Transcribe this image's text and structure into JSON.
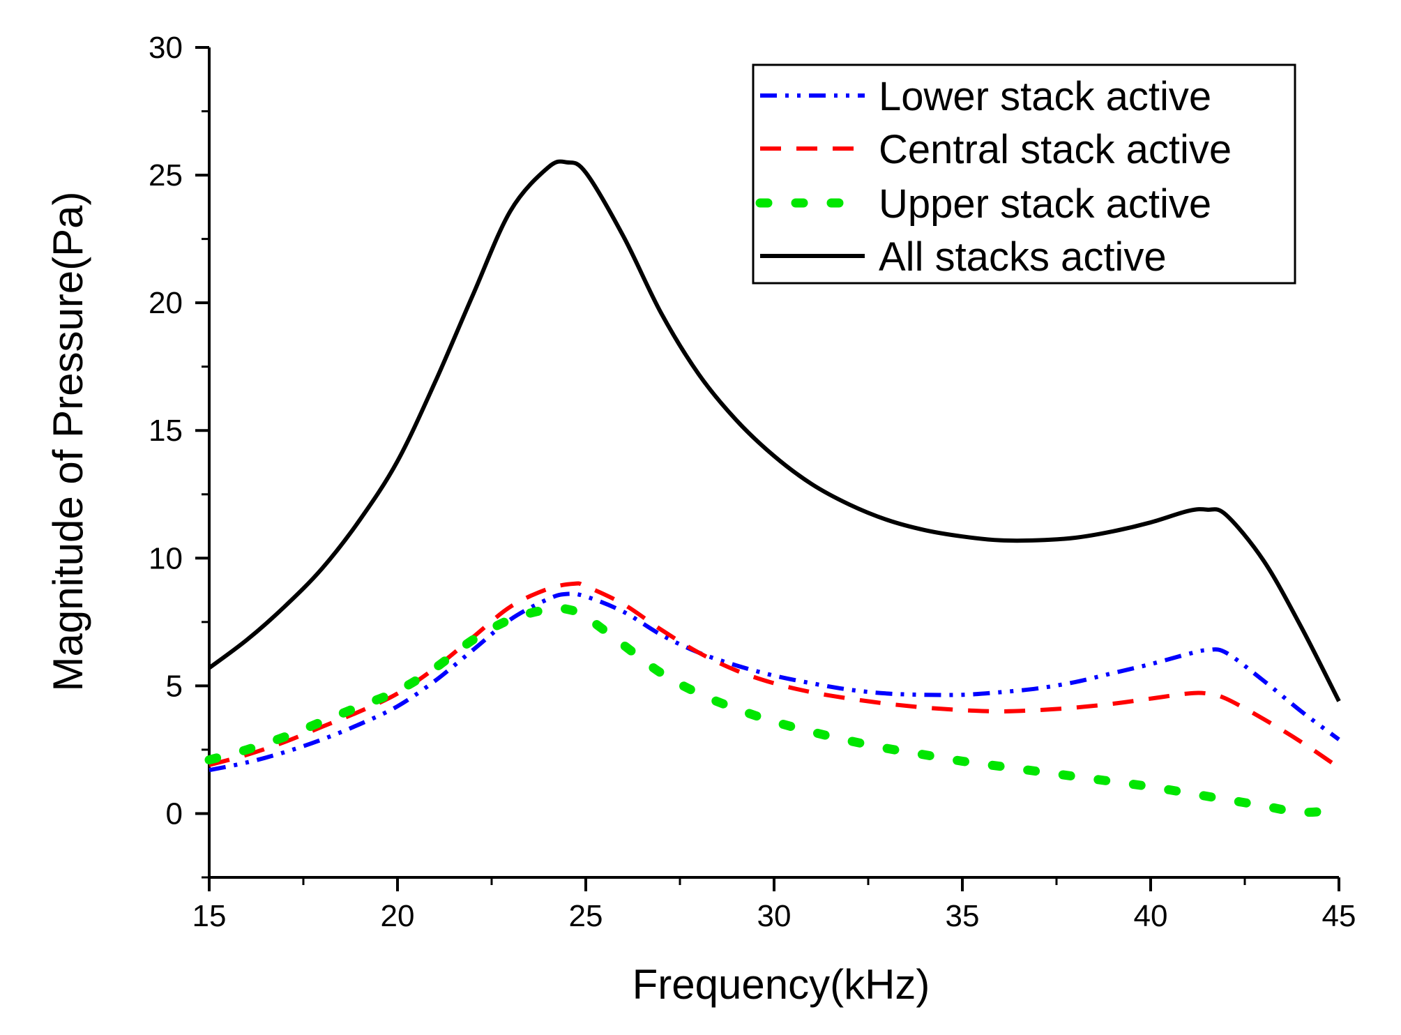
{
  "chart_data": {
    "type": "line",
    "title": "",
    "xlabel": "Frequency(kHz)",
    "ylabel": "Magnitude of Pressure(Pa)",
    "xlim": [
      15,
      45
    ],
    "ylim": [
      -2.5,
      30
    ],
    "xticks": [
      15,
      20,
      25,
      30,
      35,
      40,
      45
    ],
    "yticks": [
      0,
      5,
      10,
      15,
      20,
      25,
      30
    ],
    "xtick_labels": [
      "15",
      "20",
      "25",
      "30",
      "35",
      "40",
      "45"
    ],
    "ytick_labels": [
      "0",
      "5",
      "10",
      "15",
      "20",
      "25",
      "30"
    ],
    "x_minor_step": 2.5,
    "y_minor_step": 2.5,
    "grid": false,
    "legend_position": "top-right",
    "series": [
      {
        "name": "Lower stack active",
        "color": "#0000ff",
        "style": "dash-dot-dot",
        "x": [
          15,
          16,
          17,
          18,
          19,
          20,
          21,
          22,
          23,
          24,
          24.5,
          25,
          26,
          27,
          28,
          29,
          30,
          31,
          32,
          33,
          34,
          35,
          36,
          37,
          38,
          39,
          40,
          41,
          41.5,
          42,
          43,
          44,
          45
        ],
        "y": [
          1.7,
          2.0,
          2.4,
          2.9,
          3.5,
          4.2,
          5.2,
          6.4,
          7.6,
          8.4,
          8.6,
          8.5,
          7.9,
          7.0,
          6.3,
          5.8,
          5.4,
          5.1,
          4.85,
          4.7,
          4.65,
          4.65,
          4.75,
          4.9,
          5.15,
          5.5,
          5.85,
          6.25,
          6.4,
          6.3,
          5.2,
          4.0,
          2.9
        ]
      },
      {
        "name": "Central stack active",
        "color": "#ff0000",
        "style": "dash",
        "x": [
          15,
          16,
          17,
          18,
          19,
          20,
          21,
          22,
          23,
          24,
          24.7,
          25,
          26,
          27,
          28,
          29,
          30,
          31,
          32,
          33,
          34,
          35,
          36,
          37,
          38,
          39,
          40,
          41,
          41.5,
          42,
          43,
          44,
          45
        ],
        "y": [
          1.9,
          2.3,
          2.8,
          3.4,
          4.0,
          4.7,
          5.7,
          6.9,
          8.1,
          8.8,
          9.0,
          8.9,
          8.2,
          7.2,
          6.3,
          5.6,
          5.1,
          4.75,
          4.5,
          4.3,
          4.15,
          4.05,
          4.0,
          4.05,
          4.15,
          4.3,
          4.5,
          4.7,
          4.7,
          4.5,
          3.7,
          2.8,
          1.8
        ]
      },
      {
        "name": "Upper stack active",
        "color": "#00e600",
        "style": "dot",
        "x": [
          15,
          16,
          17,
          18,
          19,
          20,
          21,
          22,
          23,
          24,
          24.5,
          25,
          26,
          27,
          28,
          29,
          30,
          31,
          32,
          33,
          34,
          35,
          36,
          37,
          38,
          39,
          40,
          41,
          42,
          43,
          44,
          45
        ],
        "y": [
          2.1,
          2.5,
          3.0,
          3.6,
          4.2,
          4.8,
          5.7,
          6.8,
          7.6,
          8.0,
          8.0,
          7.7,
          6.6,
          5.5,
          4.7,
          4.1,
          3.6,
          3.2,
          2.85,
          2.55,
          2.3,
          2.05,
          1.85,
          1.65,
          1.45,
          1.25,
          1.05,
          0.8,
          0.55,
          0.3,
          0.05,
          0.15
        ]
      },
      {
        "name": "All stacks active",
        "color": "#000000",
        "style": "solid",
        "x": [
          15,
          16,
          17,
          18,
          19,
          20,
          21,
          22,
          23,
          24,
          24.5,
          25,
          26,
          27,
          28,
          29,
          30,
          31,
          32,
          33,
          34,
          35,
          36,
          37,
          38,
          39,
          40,
          41,
          41.5,
          42,
          43,
          44,
          45
        ],
        "y": [
          5.7,
          6.8,
          8.1,
          9.6,
          11.5,
          13.8,
          16.9,
          20.3,
          23.6,
          25.3,
          25.5,
          25.1,
          22.6,
          19.6,
          17.2,
          15.4,
          14.0,
          12.9,
          12.1,
          11.5,
          11.1,
          10.85,
          10.7,
          10.7,
          10.8,
          11.05,
          11.4,
          11.85,
          11.9,
          11.7,
          9.9,
          7.3,
          4.4
        ]
      }
    ]
  }
}
